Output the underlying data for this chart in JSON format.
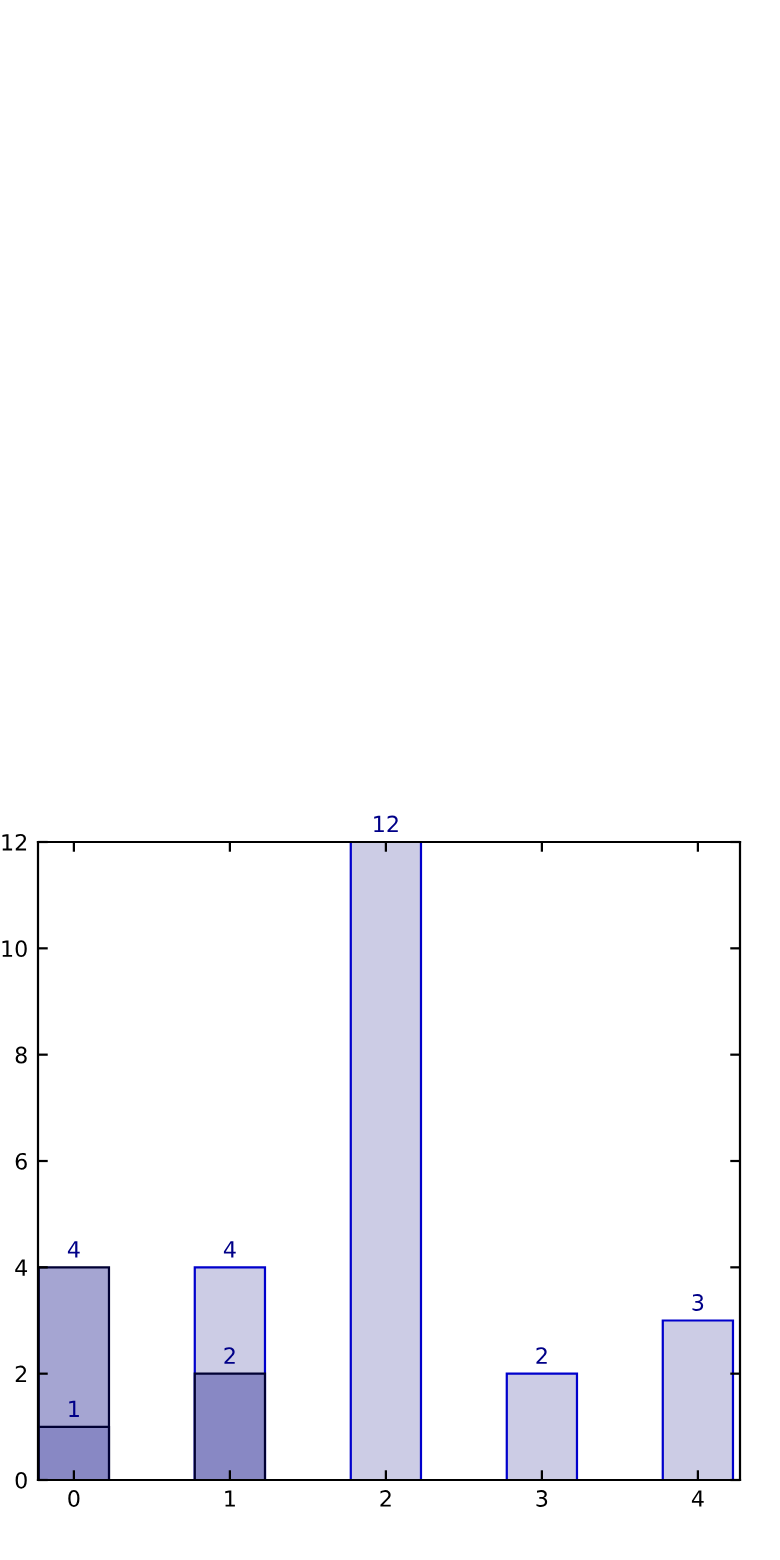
{
  "chart_data": {
    "type": "bar",
    "x": [
      0,
      1,
      2,
      3,
      4
    ],
    "series": [
      {
        "color": "#ccccE5",
        "values": [
          null,
          4,
          12,
          2,
          3
        ]
      },
      {
        "color": "#a5a5d2",
        "values": [
          4,
          null,
          null,
          null,
          null
        ]
      },
      {
        "color": "#8888c4",
        "values": [
          1,
          2,
          null,
          null,
          null
        ]
      }
    ],
    "xlim": [
      -0.23,
      4.27
    ],
    "xticks": [
      0,
      1,
      2,
      3,
      4
    ],
    "ylim": [
      0,
      12
    ],
    "yticks": [
      0,
      2,
      4,
      6,
      8,
      10,
      12
    ],
    "grid": false,
    "data_labels": true
  }
}
